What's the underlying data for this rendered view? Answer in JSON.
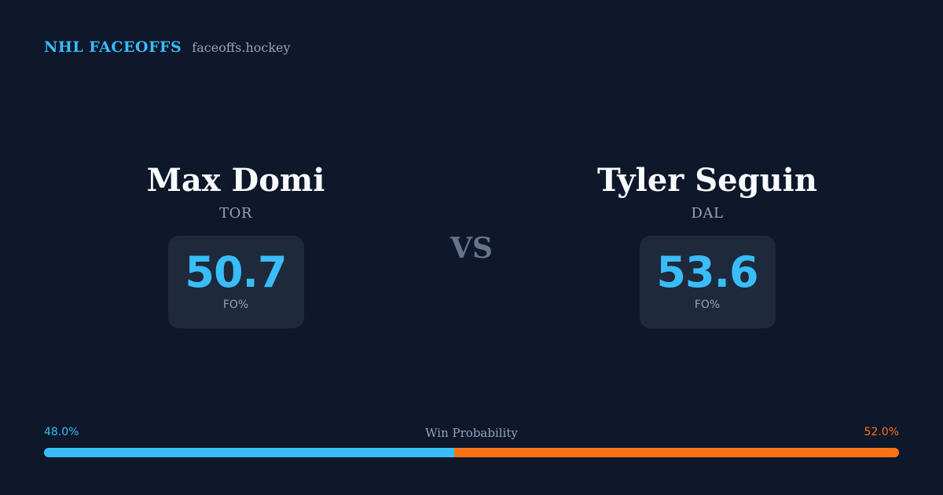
{
  "brand": {
    "title": "NHL FACEOFFS",
    "domain": "faceoffs.hockey"
  },
  "vs_label": "VS",
  "players": [
    {
      "name": "Max Domi",
      "team": "TOR",
      "fo_value": "50.7",
      "fo_label": "FO%"
    },
    {
      "name": "Tyler Seguin",
      "team": "DAL",
      "fo_value": "53.6",
      "fo_label": "FO%"
    }
  ],
  "win_probability": {
    "title": "Win Probability",
    "left_label": "48.0%",
    "right_label": "52.0%",
    "left_value": 48.0,
    "right_value": 52.0
  },
  "colors": {
    "background": "#0f172a",
    "accent_left": "#38bdf8",
    "accent_right": "#f97316",
    "card": "#1e293b",
    "muted": "#94a3b8"
  }
}
